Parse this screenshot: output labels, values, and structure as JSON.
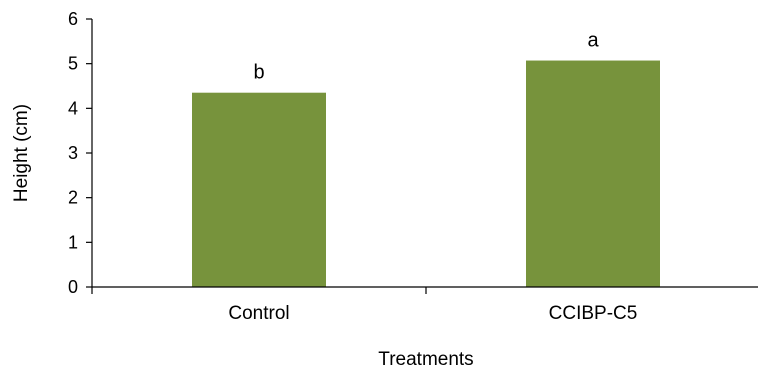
{
  "chart_data": {
    "type": "bar",
    "categories": [
      "Control",
      "CCIBP-C5"
    ],
    "values": [
      4.35,
      5.07
    ],
    "bar_labels": [
      "b",
      "a"
    ],
    "bar_color": "#77933c",
    "xlabel": "Treatments",
    "ylabel": "Height (cm)",
    "ylim": [
      0,
      6
    ],
    "yticks": [
      "0",
      "1",
      "2",
      "3",
      "4",
      "5",
      "6"
    ],
    "grid": false,
    "legend": "none"
  }
}
